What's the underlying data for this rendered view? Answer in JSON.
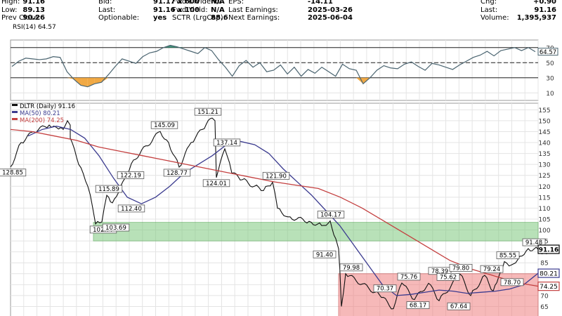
{
  "header": {
    "col1": [
      {
        "label": "High:",
        "value": "91.16"
      },
      {
        "label": "Low:",
        "value": "89.13"
      },
      {
        "label": "Prev Close:",
        "value": "90.26"
      }
    ],
    "col2": [
      {
        "label": "Bid:",
        "value": "91.17 x 600"
      },
      {
        "label": "Last:",
        "value": "91.16 x 100"
      },
      {
        "label": "Optionable:",
        "value": "yes"
      }
    ],
    "col3": [
      {
        "label": "Fwd Dividend:",
        "value": "N/A"
      },
      {
        "label": "Fwd Yield:",
        "value": "N/A"
      },
      {
        "label": "SCTR (LrgCap):",
        "value": "88.6"
      }
    ],
    "col4": [
      {
        "label": "EPS:",
        "value": "-14.11"
      },
      {
        "label": "Last Earnings:",
        "value": "2025-03-26"
      },
      {
        "label": "Next Earnings:",
        "value": "2025-06-04"
      }
    ],
    "col5": [
      {
        "label": "Chg:",
        "value": "+0.90"
      },
      {
        "label": "Last:",
        "value": "91.16"
      },
      {
        "label": "Volume:",
        "value": "1,395,937"
      }
    ]
  },
  "colors": {
    "price": "#111111",
    "ma50": "#3b3b8f",
    "ma200": "#c44040",
    "rsi": "#4a6470",
    "rsi_low_fill": "#f0a030",
    "rsi_high_fill": "#2e8b6e",
    "green_zone": "#7fc97f",
    "red_zone": "#f08080",
    "grid": "#e4e4e4"
  },
  "chart_data": [
    {
      "type": "line",
      "panel": "RSI",
      "label": "RSI(14) 64.57",
      "current_value": "64.57",
      "ylim": [
        0,
        80
      ],
      "yticks": [
        10,
        30,
        50,
        70
      ],
      "reference_lines": [
        30,
        50,
        70
      ],
      "series": [
        {
          "name": "RSI(14)",
          "values": [
            45,
            52,
            56,
            55,
            54,
            55,
            58,
            57,
            38,
            28,
            20,
            18,
            22,
            24,
            34,
            45,
            55,
            52,
            49,
            58,
            63,
            65,
            70,
            73,
            71,
            68,
            65,
            62,
            70,
            66,
            54,
            44,
            32,
            46,
            53,
            44,
            50,
            38,
            40,
            47,
            35,
            44,
            32,
            41,
            36,
            44,
            38,
            32,
            48,
            42,
            40,
            22,
            30,
            40,
            46,
            43,
            42,
            48,
            51,
            45,
            40,
            49,
            47,
            44,
            41,
            47,
            52,
            57,
            60,
            65,
            59,
            66,
            68,
            70,
            66,
            70,
            64.57
          ]
        }
      ]
    },
    {
      "type": "line",
      "panel": "Price",
      "label": "DLTR (Daily) 91.16",
      "ylim": [
        60,
        158
      ],
      "yticks": [
        65,
        70,
        75,
        80,
        85,
        90,
        95,
        100,
        105,
        110,
        115,
        120,
        125,
        130,
        135,
        140,
        145,
        150,
        155
      ],
      "series": [
        {
          "name": "DLTR (Daily)",
          "values": [
            128.85,
            140,
            145,
            148,
            147,
            146,
            150,
            148,
            142,
            130,
            120,
            110,
            102.77,
            103.69,
            115.89,
            112.4,
            122.19,
            132,
            145.09,
            140,
            128.77,
            140,
            146,
            151.21,
            150,
            124.01,
            137.14,
            126,
            123,
            120,
            118,
            121.9,
            110,
            106,
            104,
            102,
            104.17,
            96,
            91.4,
            80,
            65,
            79.98,
            70.37,
            64,
            75.76,
            68.17,
            75.62,
            67.64,
            79.8,
            70,
            79.24,
            72,
            78.7,
            85.55,
            84,
            88,
            91.48,
            91.16
          ]
        },
        {
          "name": "MA(50)",
          "last": "80.21",
          "values": [
            143,
            146,
            147.5,
            146,
            142,
            134,
            124,
            115,
            112,
            115,
            120,
            126,
            130,
            134,
            139,
            140.5,
            139,
            135,
            128,
            122,
            116,
            109,
            102,
            93,
            84,
            75,
            70,
            70.5,
            71.5,
            72.5,
            72,
            71,
            71.5,
            72,
            73,
            75,
            80.21
          ]
        },
        {
          "name": "MA(200)",
          "last": "74.25",
          "values": [
            146,
            145,
            143,
            141,
            138,
            136,
            134,
            132,
            130,
            128,
            126,
            124,
            122,
            120.5,
            119,
            115,
            110,
            104,
            98,
            92,
            86,
            82,
            79,
            76,
            74.25
          ]
        }
      ],
      "zones": [
        {
          "name": "support",
          "y_range": [
            95,
            103.5
          ],
          "color": "green"
        },
        {
          "name": "resistance",
          "y_range": [
            60,
            80
          ],
          "color": "red"
        }
      ],
      "annotations": [
        {
          "text": "128.85",
          "value": 128.85
        },
        {
          "text": "102.77",
          "value": 102.77
        },
        {
          "text": "103.69",
          "value": 103.69
        },
        {
          "text": "115.89",
          "value": 115.89
        },
        {
          "text": "112.40",
          "value": 112.4
        },
        {
          "text": "122.19",
          "value": 122.19
        },
        {
          "text": "145.09",
          "value": 145.09
        },
        {
          "text": "128.77",
          "value": 128.77
        },
        {
          "text": "151.21",
          "value": 151.21
        },
        {
          "text": "137.14",
          "value": 137.14
        },
        {
          "text": "124.01",
          "value": 124.01
        },
        {
          "text": "121.90",
          "value": 121.9
        },
        {
          "text": "104.17",
          "value": 104.17
        },
        {
          "text": "91.40",
          "value": 91.4
        },
        {
          "text": "79.98",
          "value": 79.98
        },
        {
          "text": "70.37",
          "value": 70.37
        },
        {
          "text": "75.76",
          "value": 75.76
        },
        {
          "text": "68.17",
          "value": 68.17
        },
        {
          "text": "78.39",
          "value": 78.39
        },
        {
          "text": "75.62",
          "value": 75.62
        },
        {
          "text": "67.64",
          "value": 67.64
        },
        {
          "text": "79.80",
          "value": 79.8
        },
        {
          "text": "79.24",
          "value": 79.24
        },
        {
          "text": "78.70",
          "value": 78.7
        },
        {
          "text": "85.55",
          "value": 85.55
        },
        {
          "text": "91.48",
          "value": 91.48
        }
      ],
      "price_tags": [
        {
          "text": "91.16",
          "value": 91.16,
          "style": "last"
        },
        {
          "text": "80.21",
          "value": 80.21,
          "style": "ma50"
        },
        {
          "text": "74.25",
          "value": 74.25,
          "style": "ma200"
        }
      ],
      "legend": {
        "position": "top-left",
        "entries": [
          {
            "text": "DLTR (Daily) 91.16",
            "color": "price"
          },
          {
            "text": "MA(50) 80.21",
            "color": "ma50"
          },
          {
            "text": "MA(200) 74.25",
            "color": "ma200"
          }
        ]
      }
    }
  ]
}
